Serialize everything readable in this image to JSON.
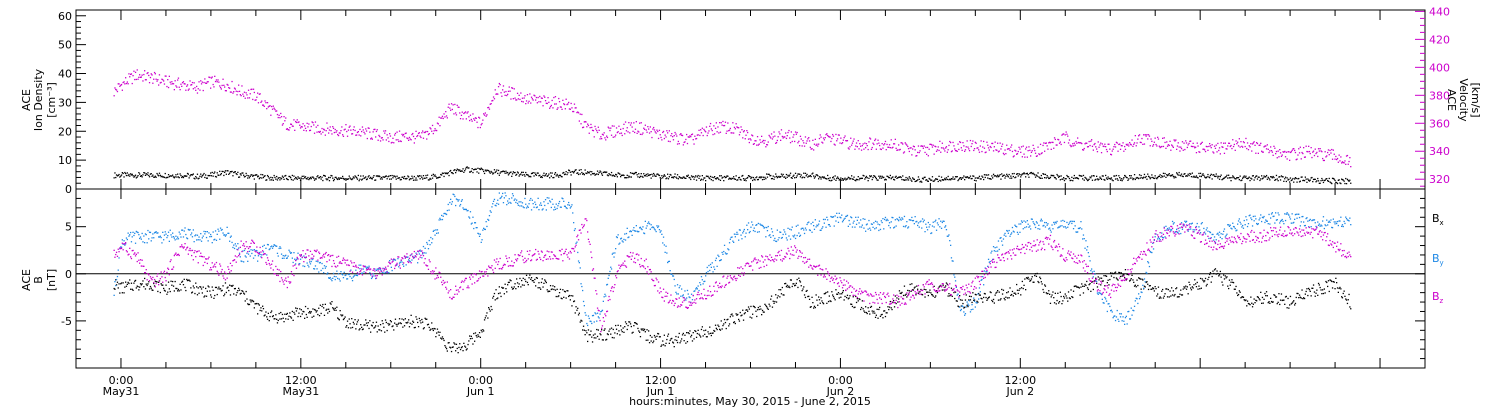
{
  "chart_data": [
    {
      "type": "scatter",
      "panel": "top",
      "left_axis": {
        "title_lines": [
          "ACE",
          "Ion Density",
          "[cm⁻³]"
        ],
        "ylim": [
          0,
          62
        ],
        "ticks": [
          0,
          10,
          20,
          30,
          40,
          50,
          60
        ]
      },
      "right_axis": {
        "title_lines": [
          "ACE",
          "Velocity",
          "[km/s]"
        ],
        "ylim": [
          313,
          441
        ],
        "ticks": [
          320,
          340,
          360,
          380,
          400,
          420,
          440
        ],
        "color": "#cc00cc"
      },
      "series": [
        {
          "axis": "left",
          "color": "#000000",
          "x": [
            -0.5,
            0,
            1,
            2,
            3,
            4,
            5,
            6,
            7,
            8,
            9,
            10,
            11,
            12,
            13,
            14,
            15,
            16,
            17,
            18,
            19,
            20,
            21,
            22,
            23,
            24,
            25,
            26,
            27,
            28,
            29,
            30,
            31,
            32,
            33,
            34,
            35,
            36,
            37,
            38,
            39,
            40,
            41,
            42,
            43,
            44,
            45,
            46,
            47,
            48,
            49,
            50,
            51,
            52,
            53,
            54,
            55,
            56,
            57,
            58,
            59,
            60,
            61,
            62,
            63,
            64,
            65,
            66,
            67,
            68,
            69,
            70,
            71,
            72,
            73,
            74,
            75,
            76,
            77,
            78,
            79,
            80,
            81,
            82
          ],
          "y": [
            5,
            5,
            5,
            5,
            5,
            5,
            4.5,
            5,
            6,
            5,
            4.5,
            4,
            4,
            4,
            4,
            4,
            4,
            4,
            4,
            4,
            4,
            4,
            4.5,
            6,
            7,
            6.5,
            6,
            5.5,
            5,
            5,
            5,
            6,
            6,
            5.5,
            5,
            5,
            5,
            4.5,
            4.5,
            4,
            4,
            4,
            4,
            4,
            4.5,
            4.5,
            5,
            5,
            4,
            4,
            4,
            4,
            4,
            4,
            3.5,
            3.5,
            4,
            4,
            4,
            4.5,
            4.5,
            5,
            5,
            4.5,
            4,
            4,
            4,
            4,
            4,
            4.5,
            4.5,
            5,
            5,
            5,
            4.5,
            4,
            4,
            4,
            4,
            3.5,
            3.5,
            3,
            3,
            3
          ]
        },
        {
          "axis": "right",
          "color": "#cc00cc",
          "x": [
            -0.5,
            0,
            1,
            2,
            3,
            4,
            5,
            6,
            7,
            8,
            9,
            10,
            11,
            12,
            13,
            14,
            15,
            16,
            17,
            18,
            19,
            20,
            21,
            22,
            23,
            24,
            25,
            26,
            27,
            28,
            29,
            30,
            31,
            32,
            33,
            34,
            35,
            36,
            37,
            38,
            39,
            40,
            41,
            42,
            43,
            44,
            45,
            46,
            47,
            48,
            49,
            50,
            51,
            52,
            53,
            54,
            55,
            56,
            57,
            58,
            59,
            60,
            61,
            62,
            63,
            64,
            65,
            66,
            67,
            68,
            69,
            70,
            71,
            72,
            73,
            74,
            75,
            76,
            77,
            78,
            79,
            80,
            81,
            82
          ],
          "y": [
            383,
            388,
            395,
            393,
            390,
            388,
            386,
            390,
            388,
            383,
            380,
            370,
            360,
            358,
            357,
            356,
            355,
            354,
            352,
            350,
            351,
            350,
            358,
            372,
            365,
            360,
            385,
            382,
            378,
            376,
            375,
            373,
            358,
            352,
            355,
            358,
            356,
            352,
            350,
            348,
            355,
            358,
            356,
            350,
            348,
            352,
            350,
            345,
            350,
            348,
            345,
            346,
            346,
            344,
            340,
            342,
            344,
            345,
            344,
            343,
            342,
            340,
            341,
            345,
            350,
            345,
            344,
            342,
            344,
            350,
            348,
            344,
            345,
            343,
            341,
            345,
            346,
            342,
            340,
            338,
            340,
            338,
            337,
            332
          ]
        }
      ]
    },
    {
      "type": "scatter",
      "panel": "bottom",
      "left_axis": {
        "title_lines": [
          "ACE",
          "B",
          "[nT]"
        ],
        "ylim": [
          -10,
          9
        ],
        "ticks": [
          -5,
          0,
          5
        ]
      },
      "zero_line": true,
      "legend": {
        "placement": "right",
        "entries": [
          {
            "label": "Bx",
            "color": "#000000"
          },
          {
            "label": "By",
            "color": "#1e88e5"
          },
          {
            "label": "Bz",
            "color": "#cc00cc"
          }
        ]
      },
      "series": [
        {
          "name": "Bx",
          "color": "#000000",
          "x": [
            -0.5,
            0,
            1,
            2,
            3,
            4,
            5,
            6,
            7,
            8,
            9,
            10,
            11,
            12,
            13,
            14,
            15,
            16,
            17,
            18,
            19,
            20,
            21,
            22,
            23,
            24,
            25,
            26,
            27,
            28,
            29,
            30,
            31,
            32,
            33,
            34,
            35,
            36,
            37,
            38,
            39,
            40,
            41,
            42,
            43,
            44,
            45,
            46,
            47,
            48,
            49,
            50,
            51,
            52,
            53,
            54,
            55,
            56,
            57,
            58,
            59,
            60,
            61,
            62,
            63,
            64,
            65,
            66,
            67,
            68,
            69,
            70,
            71,
            72,
            73,
            74,
            75,
            76,
            77,
            78,
            79,
            80,
            81,
            82
          ],
          "y": [
            -1,
            -1.5,
            -1,
            -1,
            -1.5,
            -1,
            -1.5,
            -2,
            -1.5,
            -2,
            -3.5,
            -4.5,
            -4.5,
            -4,
            -4,
            -3.5,
            -5,
            -5.5,
            -5.5,
            -5.5,
            -5,
            -5,
            -6,
            -8,
            -7.5,
            -6,
            -2,
            -1,
            -0.5,
            -1,
            -2,
            -2.5,
            -6.5,
            -6.5,
            -6,
            -5.5,
            -6.5,
            -7,
            -7,
            -6.5,
            -6,
            -5.5,
            -4.5,
            -4,
            -3.5,
            -2,
            -0.5,
            -3,
            -2.5,
            -2,
            -3,
            -4,
            -4,
            -2,
            -1.5,
            -2,
            -1.5,
            -3,
            -2.5,
            -2.5,
            -2,
            -1.5,
            0,
            -2.5,
            -2.5,
            -1.5,
            -1,
            -0.5,
            0,
            -1,
            -2,
            -2,
            -1.5,
            -1,
            0,
            -1,
            -3,
            -2.5,
            -2.5,
            -3,
            -2,
            -1.5,
            -1,
            -3
          ]
        },
        {
          "name": "By",
          "color": "#1e88e5",
          "x": [
            -0.5,
            0,
            1,
            2,
            3,
            4,
            5,
            6,
            7,
            8,
            9,
            10,
            11,
            12,
            13,
            14,
            15,
            16,
            17,
            18,
            19,
            20,
            21,
            22,
            23,
            24,
            25,
            26,
            27,
            28,
            29,
            30,
            31,
            32,
            33,
            34,
            35,
            36,
            37,
            38,
            39,
            40,
            41,
            42,
            43,
            44,
            45,
            46,
            47,
            48,
            49,
            50,
            51,
            52,
            53,
            54,
            55,
            56,
            57,
            58,
            59,
            60,
            61,
            62,
            63,
            64,
            65,
            66,
            67,
            68,
            69,
            70,
            71,
            72,
            73,
            74,
            75,
            76,
            77,
            78,
            79,
            80,
            81,
            82
          ],
          "y": [
            -2,
            3.5,
            4,
            4,
            4,
            4.5,
            4,
            4,
            4.5,
            2,
            2,
            3,
            2,
            1.5,
            1,
            0,
            -0.5,
            0.5,
            0,
            1,
            1.5,
            2,
            4.5,
            8,
            7,
            4,
            8,
            8,
            7.5,
            7.5,
            7.5,
            7.5,
            -5,
            -4,
            3.5,
            4.5,
            5,
            4.5,
            -1.5,
            -2.5,
            0,
            2,
            4,
            5,
            4.5,
            4,
            4.5,
            5,
            5.5,
            6,
            5.5,
            5,
            5.5,
            5.5,
            5.5,
            5,
            5.5,
            -4,
            -3,
            2,
            4,
            5,
            5.5,
            5,
            5.5,
            5,
            -1,
            -4,
            -5,
            -2,
            4,
            5,
            5,
            5,
            4,
            5,
            5.5,
            6,
            6,
            6,
            5.5,
            5.5,
            5.5,
            5.5
          ]
        },
        {
          "name": "Bz",
          "color": "#cc00cc",
          "x": [
            -0.5,
            0,
            1,
            2,
            3,
            4,
            5,
            6,
            7,
            8,
            9,
            10,
            11,
            12,
            13,
            14,
            15,
            16,
            17,
            18,
            19,
            20,
            21,
            22,
            23,
            24,
            25,
            26,
            27,
            28,
            29,
            30,
            31,
            32,
            33,
            34,
            35,
            36,
            37,
            38,
            39,
            40,
            41,
            42,
            43,
            44,
            45,
            46,
            47,
            48,
            49,
            50,
            51,
            52,
            53,
            54,
            55,
            56,
            57,
            58,
            59,
            60,
            61,
            62,
            63,
            64,
            65,
            66,
            67,
            68,
            69,
            70,
            71,
            72,
            73,
            74,
            75,
            76,
            77,
            78,
            79,
            80,
            81,
            82
          ],
          "y": [
            2,
            3,
            2,
            -1,
            0,
            3,
            2,
            1,
            0,
            3,
            3,
            1,
            -1,
            2,
            2,
            1.5,
            1,
            0.5,
            0,
            1,
            1.5,
            2,
            0,
            -2,
            -1,
            0,
            1,
            1.5,
            2,
            2,
            2,
            2,
            6,
            -6,
            0,
            2,
            1,
            -2,
            -3,
            -3,
            -2,
            -1,
            0,
            1,
            1.5,
            2,
            2.5,
            1,
            0,
            -1,
            -2,
            -2.5,
            -2.5,
            -3,
            -2,
            -1,
            -1.5,
            -2,
            -1,
            1,
            2,
            2.5,
            3,
            3.5,
            2,
            1.5,
            -1,
            -2,
            0,
            2,
            4,
            4.5,
            5,
            4,
            3,
            3.5,
            4,
            4,
            4.5,
            4.5,
            4.5,
            4.5,
            3,
            2
          ]
        }
      ]
    }
  ],
  "x_axis": {
    "range_hours": [
      -3,
      87
    ],
    "major_ticks": [
      {
        "hour": 0,
        "line1": "0:00",
        "line2": "May31"
      },
      {
        "hour": 12,
        "line1": "12:00",
        "line2": "May31"
      },
      {
        "hour": 24,
        "line1": "0:00",
        "line2": "Jun 1"
      },
      {
        "hour": 36,
        "line1": "12:00",
        "line2": "Jun 1"
      },
      {
        "hour": 48,
        "line1": "0:00",
        "line2": "Jun 2"
      },
      {
        "hour": 60,
        "line1": "12:00",
        "line2": "Jun 2"
      }
    ],
    "xlabel": "hours:minutes, May 30, 2015 - June  2, 2015"
  }
}
